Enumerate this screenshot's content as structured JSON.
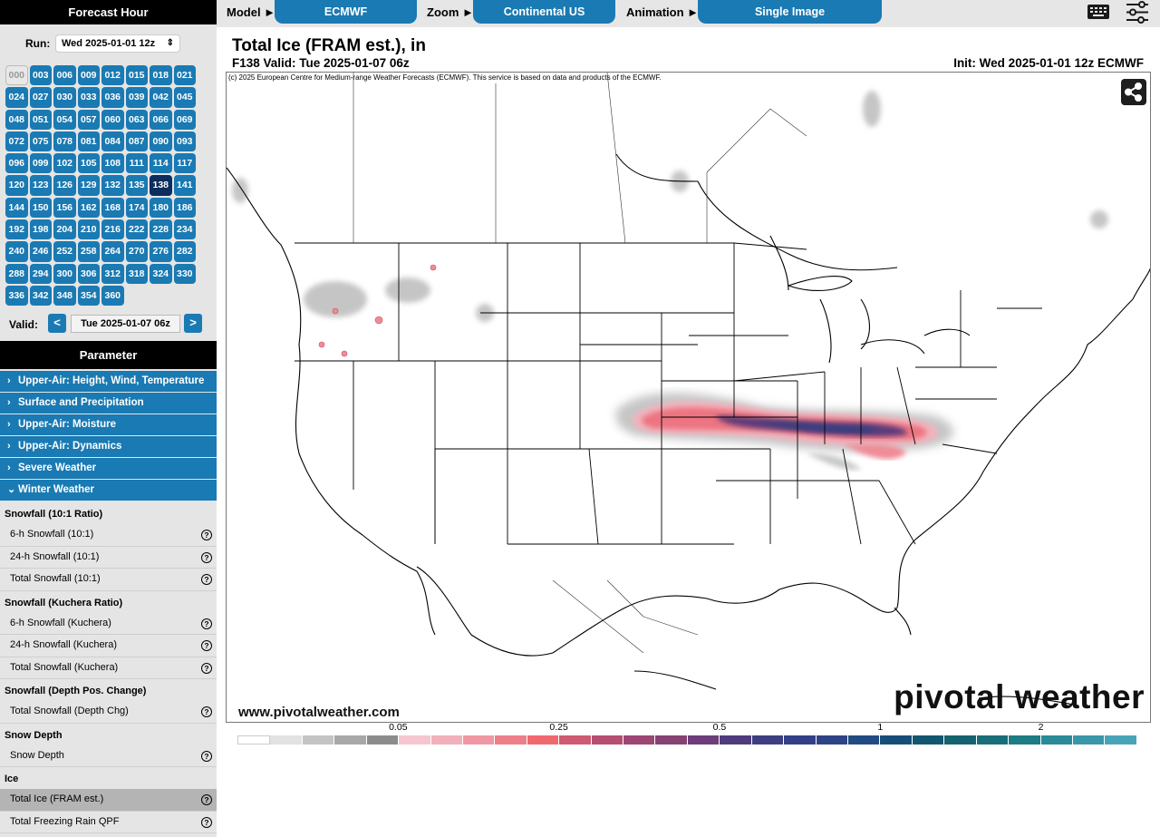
{
  "sidebar": {
    "forecast_hour_title": "Forecast Hour",
    "run_label": "Run:",
    "run_value": "Wed 2025-01-01 12z",
    "hours": [
      "000",
      "003",
      "006",
      "009",
      "012",
      "015",
      "018",
      "021",
      "024",
      "027",
      "030",
      "033",
      "036",
      "039",
      "042",
      "045",
      "048",
      "051",
      "054",
      "057",
      "060",
      "063",
      "066",
      "069",
      "072",
      "075",
      "078",
      "081",
      "084",
      "087",
      "090",
      "093",
      "096",
      "099",
      "102",
      "105",
      "108",
      "111",
      "114",
      "117",
      "120",
      "123",
      "126",
      "129",
      "132",
      "135",
      "138",
      "141",
      "144",
      "150",
      "156",
      "162",
      "168",
      "174",
      "180",
      "186",
      "192",
      "198",
      "204",
      "210",
      "216",
      "222",
      "228",
      "234",
      "240",
      "246",
      "252",
      "258",
      "264",
      "270",
      "276",
      "282",
      "288",
      "294",
      "300",
      "306",
      "312",
      "318",
      "324",
      "330",
      "336",
      "342",
      "348",
      "354",
      "360"
    ],
    "selected_hour": "138",
    "disabled_hour": "000",
    "valid_label": "Valid:",
    "valid_prev": "<",
    "valid_value": "Tue 2025-01-07 06z",
    "valid_next": ">",
    "parameter_title": "Parameter",
    "categories": [
      {
        "label": "Upper-Air: Height, Wind, Temperature",
        "caret": "›"
      },
      {
        "label": "Surface and Precipitation",
        "caret": "›"
      },
      {
        "label": "Upper-Air: Moisture",
        "caret": "›"
      },
      {
        "label": "Upper-Air: Dynamics",
        "caret": "›"
      },
      {
        "label": "Severe Weather",
        "caret": "›"
      },
      {
        "label": "Winter Weather",
        "caret": "⌄"
      }
    ],
    "winter_groups": [
      {
        "title": "Snowfall (10:1 Ratio)",
        "items": [
          "6-h Snowfall (10:1)",
          "24-h Snowfall (10:1)",
          "Total Snowfall (10:1)"
        ]
      },
      {
        "title": "Snowfall (Kuchera Ratio)",
        "items": [
          "6-h Snowfall (Kuchera)",
          "24-h Snowfall (Kuchera)",
          "Total Snowfall (Kuchera)"
        ]
      },
      {
        "title": "Snowfall (Depth Pos. Change)",
        "items": [
          "Total Snowfall (Depth Chg)"
        ]
      },
      {
        "title": "Snow Depth",
        "items": [
          "Snow Depth"
        ]
      },
      {
        "title": "Ice",
        "items": [
          "Total Ice (FRAM est.)",
          "Total Freezing Rain QPF"
        ]
      }
    ],
    "selected_item": "Total Ice (FRAM est.)",
    "help_glyph": "?"
  },
  "topbar": {
    "model_label": "Model ►",
    "model_value": "ECMWF",
    "zoom_label": "Zoom ►",
    "zoom_value": "Continental US",
    "animation_label": "Animation ►",
    "animation_value": "Single Image",
    "keyboard_icon": "keyboard-icon",
    "settings_icon": "sliders-icon"
  },
  "map": {
    "title": "Total Ice (FRAM est.), in",
    "subtitle": "F138 Valid: Tue 2025-01-07 06z",
    "init": "Init: Wed 2025-01-01 12z ECMWF",
    "copyright": "(c) 2025 European Centre for Medium-range Weather Forecasts (ECMWF). This service is based on data and products of the ECMWF.",
    "site": "www.pivotalweather.com",
    "logo_text": "pivotal weather",
    "share_icon": "share-icon"
  },
  "legend": {
    "tick_labels": [
      "0.05",
      "0.25",
      "0.5",
      "1",
      "2"
    ],
    "colors": [
      "#ffffff",
      "#e2e2e2",
      "#c4c4c4",
      "#a8a8a8",
      "#8c8c8c",
      "#f5c6cf",
      "#f2b0ba",
      "#ef98a3",
      "#ec7f88",
      "#f0696e",
      "#ce5a74",
      "#b64e72",
      "#9c4673",
      "#874274",
      "#6d3e79",
      "#4f3c7c",
      "#3e3f82",
      "#333f87",
      "#2f4487",
      "#224b84",
      "#174e79",
      "#13566f",
      "#16636f",
      "#1a6e77",
      "#1e7c85",
      "#2b8a97",
      "#3a97a8",
      "#4aa4b8"
    ]
  }
}
